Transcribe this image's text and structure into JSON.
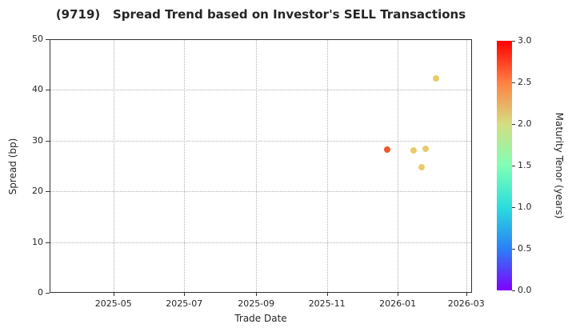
{
  "chart_data": {
    "type": "scatter",
    "title": "(9719)   Spread Trend based on Investor's SELL Transactions",
    "xlabel": "Trade Date",
    "ylabel": "Spread (bp)",
    "xlim": [
      "2025-03-07",
      "2026-03-06"
    ],
    "ylim": [
      0,
      50
    ],
    "x_ticks": [
      {
        "value": "2025-05-01",
        "label": "2025-05"
      },
      {
        "value": "2025-07-01",
        "label": "2025-07"
      },
      {
        "value": "2025-09-01",
        "label": "2025-09"
      },
      {
        "value": "2025-11-01",
        "label": "2025-11"
      },
      {
        "value": "2026-01-01",
        "label": "2026-01"
      },
      {
        "value": "2026-03-01",
        "label": "2026-03"
      }
    ],
    "y_ticks": [
      "0",
      "10",
      "20",
      "30",
      "40",
      "50"
    ],
    "grid": true,
    "legend": "none",
    "points": [
      {
        "date": "2025-12-22",
        "spread": 28.4,
        "tenor": 2.7,
        "color": "#F0572E"
      },
      {
        "date": "2026-01-14",
        "spread": 28.3,
        "tenor": 2.1,
        "color": "#E7CC6C"
      },
      {
        "date": "2026-01-21",
        "spread": 25.0,
        "tenor": 2.1,
        "color": "#E7CC6C"
      },
      {
        "date": "2026-01-24",
        "spread": 28.5,
        "tenor": 2.1,
        "color": "#E7CC6C"
      },
      {
        "date": "2026-02-02",
        "spread": 42.5,
        "tenor": 2.1,
        "color": "#E7CC6C"
      }
    ],
    "colorbar": {
      "label": "Maturity Tenor (years)",
      "min": 0.0,
      "max": 3.0,
      "ticks": [
        "0.0",
        "0.5",
        "1.0",
        "1.5",
        "2.0",
        "2.5",
        "3.0"
      ],
      "colormap": "rainbow",
      "gradient_stops": [
        {
          "pos": 0.0,
          "color": "#8000FF"
        },
        {
          "pos": 0.1667,
          "color": "#2A80F6"
        },
        {
          "pos": 0.3333,
          "color": "#2ADDDD"
        },
        {
          "pos": 0.5,
          "color": "#80FFB5"
        },
        {
          "pos": 0.6667,
          "color": "#D5DD80"
        },
        {
          "pos": 0.8333,
          "color": "#FF8042"
        },
        {
          "pos": 1.0,
          "color": "#FF0000"
        }
      ]
    },
    "colors": {
      "text": "#262626",
      "grid": "#b3b3b3",
      "spine": "#333333",
      "background": "#ffffff"
    }
  }
}
